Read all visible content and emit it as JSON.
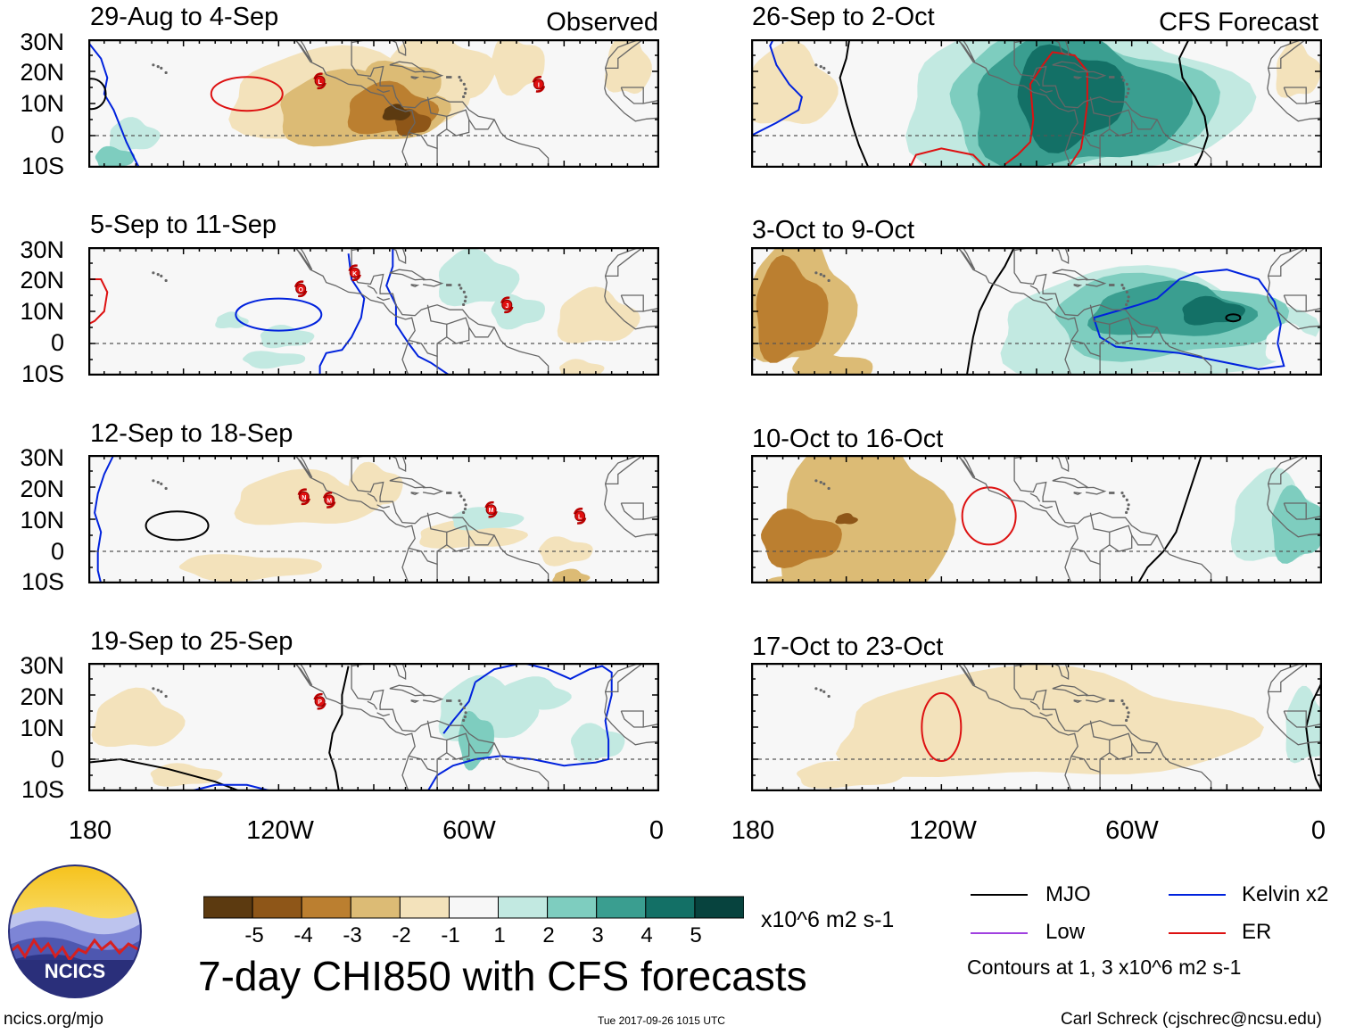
{
  "chart_data": {
    "type": "map",
    "title": "7-day CHI850 with CFS forecasts",
    "units": "x10^6 m2 s-1",
    "latitude_ticks": [
      "30N",
      "20N",
      "10N",
      "0",
      "10S"
    ],
    "longitude_ticks": [
      "180",
      "120W",
      "60W",
      "0"
    ],
    "lat_range": [
      -10,
      30
    ],
    "lon_range": [
      -180,
      0
    ],
    "colorbar": {
      "levels": [
        -5,
        -4,
        -3,
        -2,
        -1,
        1,
        2,
        3,
        4,
        5
      ],
      "labels": [
        "-5",
        "-4",
        "-3",
        "-2",
        "-1",
        "1",
        "2",
        "3",
        "4",
        "5"
      ],
      "colors": [
        "#5c3a10",
        "#8e5618",
        "#bb7f30",
        "#dcbb75",
        "#f3e2bb",
        "#f7f7f7",
        "#c2e9e1",
        "#7ecdbf",
        "#3a9e90",
        "#137066",
        "#07433e"
      ]
    },
    "panels": [
      {
        "id": "p1",
        "title": "29-Aug to 4-Sep",
        "label": "Observed",
        "markers": [
          {
            "lon": -107,
            "lat": 17,
            "letter": "L"
          },
          {
            "lon": -38,
            "lat": 16,
            "letter": "I"
          }
        ]
      },
      {
        "id": "p2",
        "title": "5-Sep to 11-Sep",
        "label": "",
        "markers": [
          {
            "lon": -113,
            "lat": 17,
            "letter": "O"
          },
          {
            "lon": -96,
            "lat": 22,
            "letter": "K"
          },
          {
            "lon": -48,
            "lat": 12,
            "letter": "J"
          }
        ]
      },
      {
        "id": "p3",
        "title": "12-Sep to 18-Sep",
        "label": "",
        "markers": [
          {
            "lon": -112,
            "lat": 17,
            "letter": "N"
          },
          {
            "lon": -104,
            "lat": 16,
            "letter": "M"
          },
          {
            "lon": -53,
            "lat": 13,
            "letter": "M"
          },
          {
            "lon": -25,
            "lat": 11,
            "letter": "L"
          }
        ]
      },
      {
        "id": "p4",
        "title": "19-Sep to 25-Sep",
        "label": "",
        "markers": [
          {
            "lon": -107,
            "lat": 18,
            "letter": "P"
          }
        ]
      },
      {
        "id": "p5",
        "title": "26-Sep to 2-Oct",
        "label": "CFS Forecast",
        "markers": []
      },
      {
        "id": "p6",
        "title": "3-Oct to 9-Oct",
        "label": "",
        "markers": []
      },
      {
        "id": "p7",
        "title": "10-Oct to 16-Oct",
        "label": "",
        "markers": []
      },
      {
        "id": "p8",
        "title": "17-Oct to 23-Oct",
        "label": "",
        "markers": []
      }
    ],
    "contour_legend": [
      {
        "name": "MJO",
        "color": "#000000"
      },
      {
        "name": "Kelvin x2",
        "color": "#0022dd"
      },
      {
        "name": "Low",
        "color": "#a040e0"
      },
      {
        "name": "ER",
        "color": "#dd1111"
      }
    ],
    "contour_note": "Contours at 1, 3 x10^6 m2 s-1"
  },
  "footer": {
    "logo_text": "NCICS",
    "url": "ncics.org/mjo",
    "timestamp": "Tue 2017-09-26 1015 UTC",
    "credit": "Carl Schreck (cjschrec@ncsu.edu)"
  }
}
